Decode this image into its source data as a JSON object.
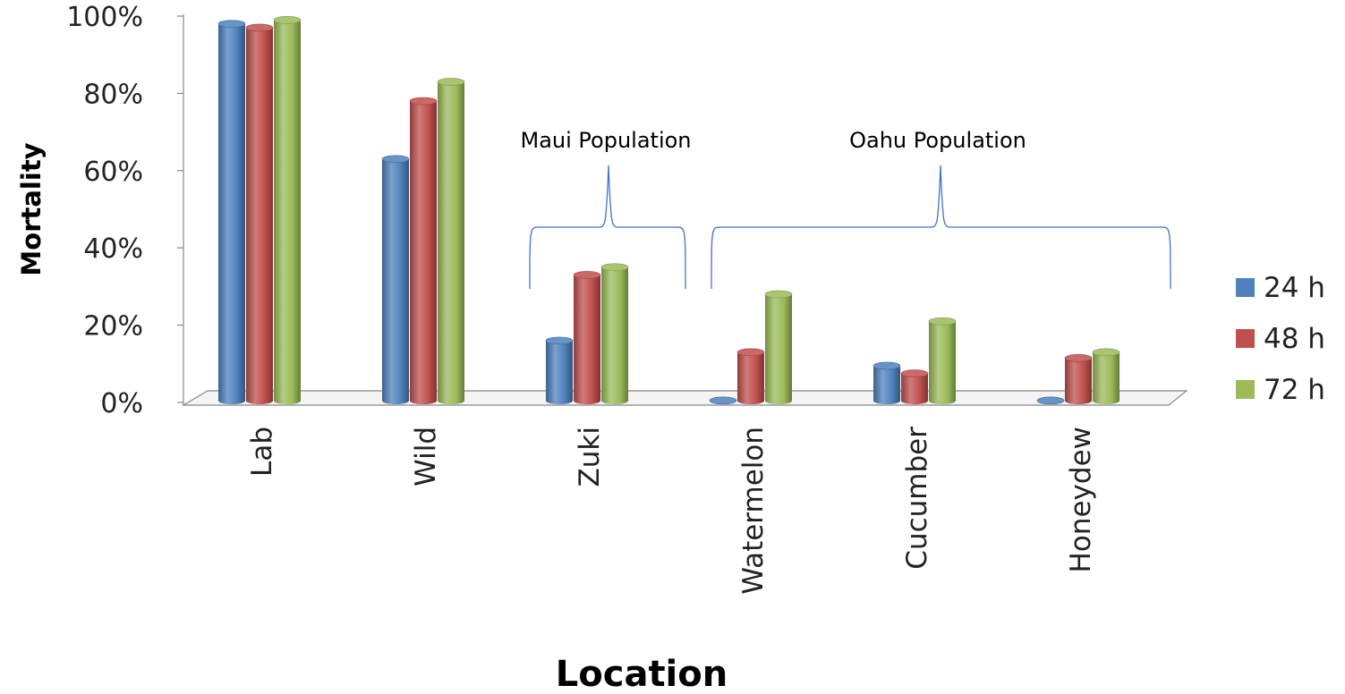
{
  "chart_data": {
    "type": "bar",
    "title": "",
    "xlabel": "Location",
    "ylabel": "Mortality",
    "categories": [
      "Lab",
      "Wild",
      "Zuki",
      "Watermelon",
      "Cucumber",
      "Honeydew"
    ],
    "series": [
      {
        "name": "24 h",
        "color": "#4F81BD",
        "values": [
          98,
          63,
          16,
          0.5,
          9.5,
          0.5
        ]
      },
      {
        "name": "48 h",
        "color": "#C0504D",
        "values": [
          97,
          78,
          33,
          13,
          7.5,
          11.5
        ]
      },
      {
        "name": "72 h",
        "color": "#9BBB59",
        "values": [
          99,
          83,
          35,
          28,
          21,
          13
        ]
      }
    ],
    "ylim": [
      0,
      100
    ],
    "yticks": [
      "0%",
      "20%",
      "40%",
      "60%",
      "80%",
      "100%"
    ],
    "yticks_values": [
      0,
      20,
      40,
      60,
      80,
      100
    ],
    "legend_position": "right",
    "grid": false,
    "annotations": [
      {
        "text": "Maui Population",
        "categories": [
          "Zuki"
        ]
      },
      {
        "text": "Oahu Population",
        "categories": [
          "Watermelon",
          "Cucumber",
          "Honeydew"
        ]
      }
    ],
    "style": "3d-cylinder"
  }
}
